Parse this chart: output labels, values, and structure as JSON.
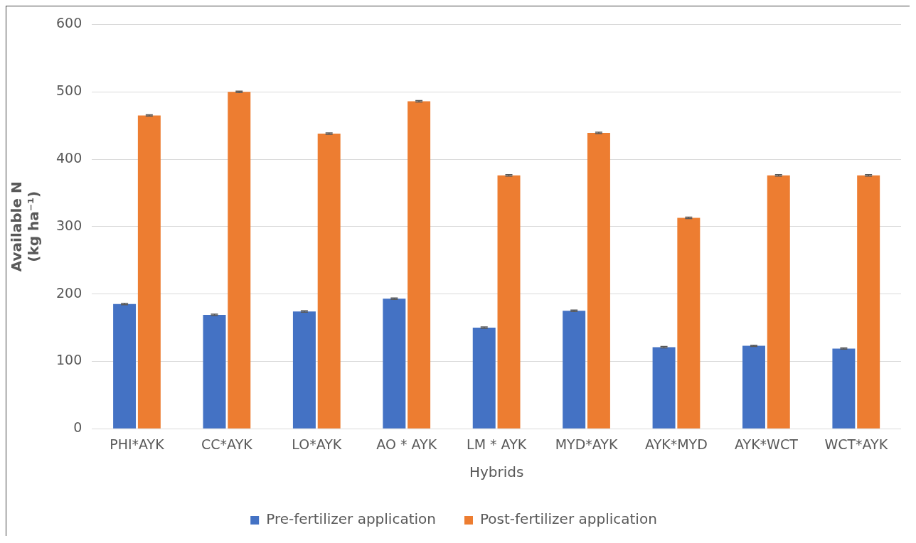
{
  "chart_data": {
    "type": "bar",
    "xlabel": "Hybrids",
    "ylabel": "Available N\n(kg ha⁻¹)",
    "categories": [
      "PHI*AYK",
      "CC*AYK",
      "LO*AYK",
      "AO * AYK",
      "LM * AYK",
      "MYD*AYK",
      "AYK*MYD",
      "AYK*WCT",
      "WCT*AYK"
    ],
    "series": [
      {
        "name": "Pre-fertilizer application",
        "color": "#4472c4",
        "values": [
          185,
          169,
          174,
          193,
          150,
          175,
          121,
          123,
          119
        ],
        "errors": [
          1,
          1,
          1,
          1,
          1,
          1,
          1,
          1,
          1
        ]
      },
      {
        "name": "Post-fertilizer application",
        "color": "#ed7d31",
        "values": [
          465,
          500,
          438,
          486,
          376,
          439,
          313,
          376,
          376
        ],
        "errors": [
          1,
          1,
          1,
          1,
          1,
          1,
          1,
          1,
          1
        ]
      }
    ],
    "ylim": [
      0,
      600
    ],
    "yticks": [
      0,
      100,
      200,
      300,
      400,
      500,
      600
    ],
    "grid": "y",
    "legend": "bottom"
  }
}
